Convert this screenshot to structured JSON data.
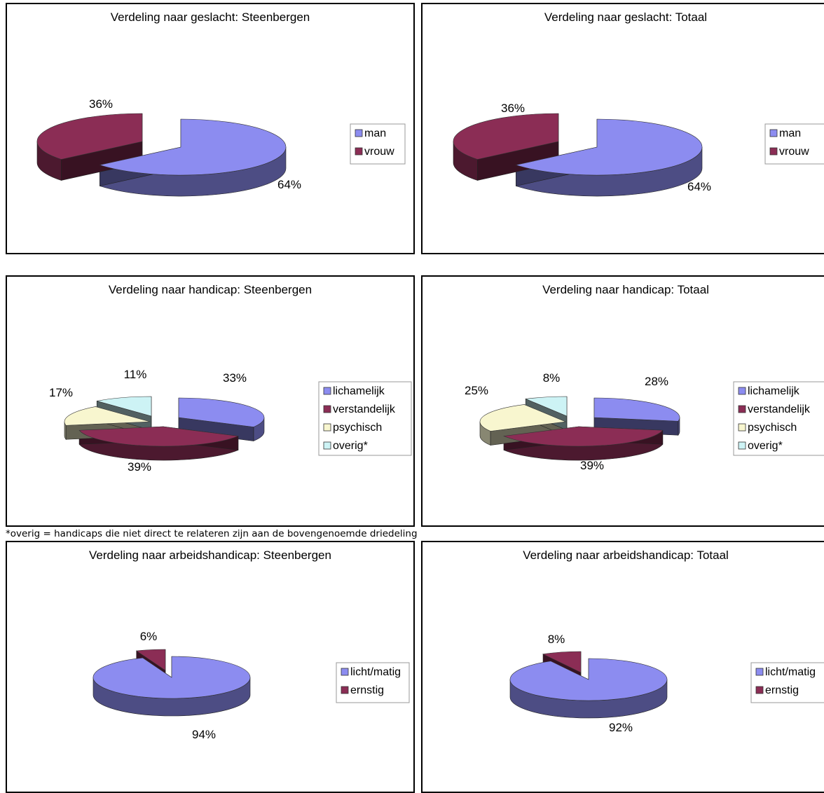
{
  "footnote": "*overig = handicaps die niet direct te relateren zijn aan de bovengenoemde driedeling",
  "colors": {
    "man": "#8c8cf0",
    "vrouw": "#8b2d55",
    "lichamelijk": "#8c8cf0",
    "verstandelijk": "#8b2d55",
    "psychisch": "#f8f6cf",
    "overig": "#cdf3f5",
    "licht_matig": "#8c8cf0",
    "ernstig": "#8b2d55"
  },
  "chart_data": [
    {
      "type": "pie",
      "title": "Verdeling naar geslacht: Steenbergen",
      "categories": [
        "man",
        "vrouw"
      ],
      "values": [
        64,
        36
      ],
      "labels": [
        "64%",
        "36%"
      ],
      "legend": [
        "man",
        "vrouw"
      ],
      "legend_position": "right"
    },
    {
      "type": "pie",
      "title": "Verdeling naar geslacht: Totaal",
      "categories": [
        "man",
        "vrouw"
      ],
      "values": [
        64,
        36
      ],
      "labels": [
        "64%",
        "36%"
      ],
      "legend": [
        "man",
        "vrouw"
      ],
      "legend_position": "right"
    },
    {
      "type": "pie",
      "title": "Verdeling naar handicap: Steenbergen",
      "categories": [
        "lichamelijk",
        "verstandelijk",
        "psychisch",
        "overig*"
      ],
      "values": [
        33,
        39,
        17,
        11
      ],
      "labels": [
        "33%",
        "39%",
        "17%",
        "11%"
      ],
      "legend": [
        "lichamelijk",
        "verstandelijk",
        "psychisch",
        "overig*"
      ],
      "legend_position": "right"
    },
    {
      "type": "pie",
      "title": "Verdeling naar handicap: Totaal",
      "categories": [
        "lichamelijk",
        "verstandelijk",
        "psychisch",
        "overig*"
      ],
      "values": [
        28,
        39,
        25,
        8
      ],
      "labels": [
        "28%",
        "39%",
        "25%",
        "8%"
      ],
      "legend": [
        "lichamelijk",
        "verstandelijk",
        "psychisch",
        "overig*"
      ],
      "legend_position": "right"
    },
    {
      "type": "pie",
      "title": "Verdeling naar arbeidshandicap: Steenbergen",
      "categories": [
        "licht/matig",
        "ernstig"
      ],
      "values": [
        94,
        6
      ],
      "labels": [
        "94%",
        "6%"
      ],
      "legend": [
        "licht/matig",
        "ernstig"
      ],
      "legend_position": "right"
    },
    {
      "type": "pie",
      "title": "Verdeling naar arbeidshandicap: Totaal",
      "categories": [
        "licht/matig",
        "ernstig"
      ],
      "values": [
        92,
        8
      ],
      "labels": [
        "92%",
        "8%"
      ],
      "legend": [
        "licht/matig",
        "ernstig"
      ],
      "legend_position": "right"
    }
  ]
}
